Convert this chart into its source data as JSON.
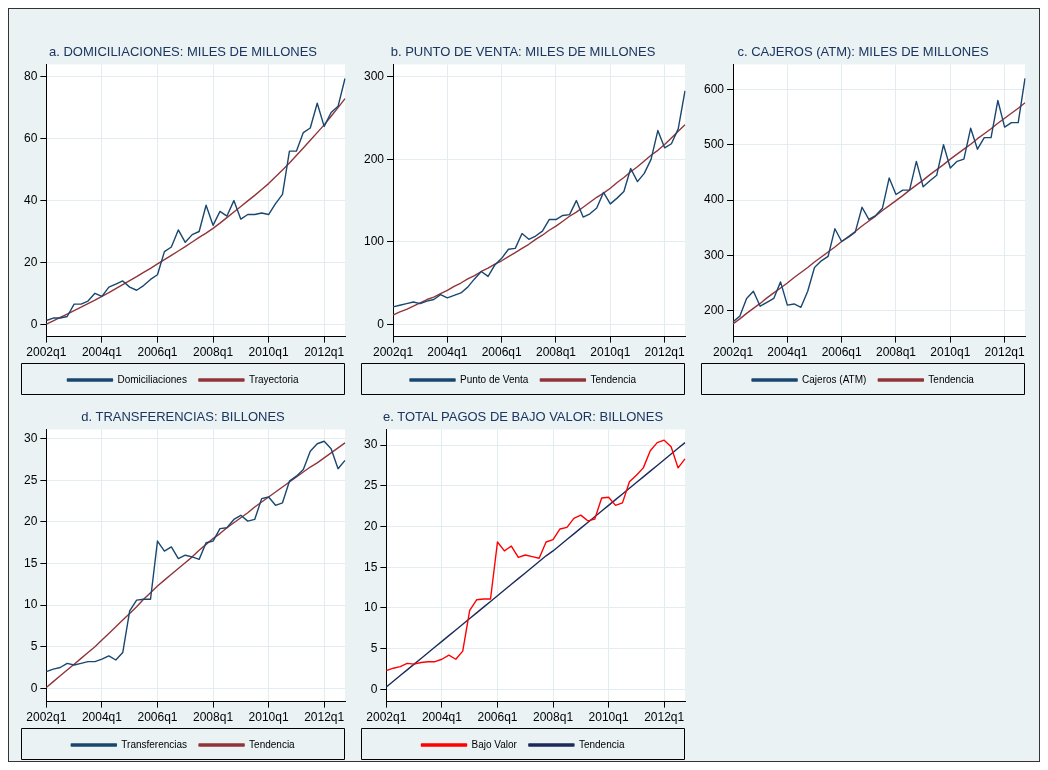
{
  "chart_data": [
    {
      "type": "line",
      "title": "a. DOMICILIACIONES: MILES DE MILLONES",
      "categories": [
        "2002q1",
        null,
        null,
        null,
        null,
        null,
        null,
        null,
        "2004q1",
        null,
        null,
        null,
        null,
        null,
        null,
        null,
        "2006q1",
        null,
        null,
        null,
        null,
        null,
        null,
        null,
        "2008q1",
        null,
        null,
        null,
        null,
        null,
        null,
        null,
        "2010q1",
        null,
        null,
        null,
        null,
        null,
        null,
        null,
        "2012q1",
        null,
        null,
        null
      ],
      "ylim": [
        -4,
        84
      ],
      "yticks": [
        0,
        20,
        40,
        60,
        80
      ],
      "grid": true,
      "legend": "bottom",
      "series": [
        {
          "name": "Domiciliaciones",
          "color": "#1a476f",
          "values": [
            1.2,
            2,
            2,
            2.5,
            6.5,
            6.5,
            7.5,
            10,
            9,
            12,
            13,
            14,
            12,
            11,
            12.5,
            14.5,
            16,
            23.5,
            25,
            30.5,
            26.5,
            29,
            30,
            38.5,
            32,
            36.5,
            35,
            40,
            34,
            35.5,
            35.5,
            36,
            35.5,
            39,
            42,
            56,
            56,
            62,
            63.5,
            71.5,
            64,
            68.5,
            70.5,
            79.5
          ]
        },
        {
          "name": "Trayectoria",
          "color": "#90353b",
          "values": [
            0,
            1.1,
            2.2,
            3.3,
            4.4,
            5.5,
            6.7,
            7.8,
            9,
            10.2,
            11.5,
            12.8,
            14.1,
            15.4,
            16.8,
            18.1,
            19.5,
            20.9,
            22.3,
            23.7,
            25.1,
            26.6,
            28.1,
            29.5,
            31,
            32.7,
            34.5,
            36.3,
            38.1,
            39.9,
            41.7,
            43.6,
            45.5,
            47.7,
            49.9,
            52.2,
            54.6,
            57,
            59.5,
            62,
            64.5,
            67.3,
            70.1,
            73
          ]
        }
      ]
    },
    {
      "type": "line",
      "title": "b. PUNTO DE VENTA: MILES DE MILLONES",
      "categories": [
        "2002q1",
        null,
        null,
        null,
        null,
        null,
        null,
        null,
        "2004q1",
        null,
        null,
        null,
        null,
        null,
        null,
        null,
        "2006q1",
        null,
        null,
        null,
        null,
        null,
        null,
        null,
        "2008q1",
        null,
        null,
        null,
        null,
        null,
        null,
        null,
        "2010q1",
        null,
        null,
        null,
        null,
        null,
        null,
        null,
        "2012q1",
        null,
        null,
        null
      ],
      "ylim": [
        -15,
        315
      ],
      "yticks": [
        0,
        100,
        200,
        300
      ],
      "grid": true,
      "legend": "bottom",
      "series": [
        {
          "name": "Punto de Venta",
          "color": "#1a476f",
          "values": [
            21,
            23,
            25,
            27,
            25,
            28,
            30,
            36,
            32,
            35,
            38,
            45,
            55,
            64,
            58,
            72,
            80,
            91,
            92,
            110,
            103,
            107,
            113,
            127,
            127,
            132,
            133,
            150,
            130,
            134,
            141,
            160,
            146,
            153,
            161,
            189,
            173,
            183,
            200,
            235,
            214,
            219,
            237,
            283
          ]
        },
        {
          "name": "Tendencia",
          "color": "#90353b",
          "values": [
            11,
            15,
            18,
            22,
            26,
            30,
            33,
            37,
            41,
            46,
            50,
            55,
            59,
            64,
            68,
            73,
            77,
            82,
            87,
            92,
            97,
            103,
            108,
            114,
            119,
            125,
            131,
            136,
            142,
            148,
            154,
            159,
            165,
            172,
            178,
            185,
            191,
            198,
            205,
            211,
            218,
            226,
            234,
            242
          ]
        }
      ]
    },
    {
      "type": "line",
      "title": "c. CAJEROS (ATM): MILES DE MILLONES",
      "categories": [
        "2002q1",
        null,
        null,
        null,
        null,
        null,
        null,
        null,
        "2004q1",
        null,
        null,
        null,
        null,
        null,
        null,
        null,
        "2006q1",
        null,
        null,
        null,
        null,
        null,
        null,
        null,
        "2008q1",
        null,
        null,
        null,
        null,
        null,
        null,
        null,
        "2010q1",
        null,
        null,
        null,
        null,
        null,
        null,
        null,
        "2012q1",
        null,
        null,
        null
      ],
      "ylim": [
        153,
        645
      ],
      "yticks": [
        200,
        300,
        400,
        500,
        600
      ],
      "grid": true,
      "legend": "bottom",
      "series": [
        {
          "name": "Cajeros (ATM)",
          "color": "#1a476f",
          "values": [
            180,
            190,
            222,
            235,
            208,
            215,
            222,
            252,
            210,
            212,
            206,
            235,
            278,
            290,
            298,
            348,
            325,
            333,
            342,
            387,
            365,
            372,
            385,
            440,
            410,
            418,
            418,
            470,
            424,
            435,
            445,
            500,
            458,
            470,
            474,
            530,
            492,
            513,
            513,
            580,
            532,
            540,
            540,
            620
          ]
        },
        {
          "name": "Tendencia",
          "color": "#90353b",
          "values": [
            176,
            185,
            195,
            204,
            213,
            223,
            232,
            241,
            250,
            260,
            269,
            278,
            288,
            297,
            306,
            315,
            325,
            334,
            343,
            353,
            362,
            371,
            381,
            390,
            399,
            408,
            418,
            427,
            436,
            446,
            455,
            464,
            474,
            483,
            492,
            501,
            511,
            520,
            529,
            539,
            548,
            557,
            566,
            576
          ]
        }
      ]
    },
    {
      "type": "line",
      "title": "d. TRANSFERENCIAS: BILLONES",
      "categories": [
        "2002q1",
        null,
        null,
        null,
        null,
        null,
        null,
        null,
        "2004q1",
        null,
        null,
        null,
        null,
        null,
        null,
        null,
        "2006q1",
        null,
        null,
        null,
        null,
        null,
        null,
        null,
        "2008q1",
        null,
        null,
        null,
        null,
        null,
        null,
        null,
        "2010q1",
        null,
        null,
        null,
        null,
        null,
        null,
        null,
        "2012q1",
        null,
        null,
        null
      ],
      "ylim": [
        -1.6,
        31.1
      ],
      "yticks": [
        0,
        5,
        10,
        15,
        20,
        25,
        30
      ],
      "grid": true,
      "legend": "bottom",
      "series": [
        {
          "name": "Transferencias",
          "color": "#1a476f",
          "values": [
            2,
            2.3,
            2.5,
            3,
            2.8,
            3,
            3.2,
            3.2,
            3.5,
            3.9,
            3.4,
            4.3,
            9.3,
            10.6,
            10.7,
            10.7,
            17.7,
            16.5,
            17,
            15.6,
            16,
            15.8,
            15.5,
            17.5,
            17.7,
            19.2,
            19.3,
            20.3,
            20.8,
            20.1,
            20.3,
            22.8,
            23,
            22,
            22.3,
            24.9,
            25.5,
            26.3,
            28.5,
            29.4,
            29.7,
            28.8,
            26.4,
            27.4
          ]
        },
        {
          "name": "Tendencia",
          "color": "#90353b",
          "values": [
            0.1,
            0.8,
            1.5,
            2.2,
            2.9,
            3.6,
            4.3,
            5,
            5.8,
            6.6,
            7.4,
            8.2,
            9,
            9.8,
            10.7,
            11.5,
            12.3,
            13,
            13.7,
            14.4,
            15.1,
            15.8,
            16.6,
            17.3,
            18,
            18.6,
            19.3,
            19.9,
            20.5,
            21.1,
            21.8,
            22.4,
            23,
            23.6,
            24.2,
            24.8,
            25.4,
            26,
            26.6,
            27.1,
            27.7,
            28.3,
            28.9,
            29.5
          ]
        }
      ]
    },
    {
      "type": "line",
      "title": "e. TOTAL PAGOS DE BAJO VALOR: BILLONES",
      "categories": [
        "2002q1",
        null,
        null,
        null,
        null,
        null,
        null,
        null,
        "2004q1",
        null,
        null,
        null,
        null,
        null,
        null,
        null,
        "2006q1",
        null,
        null,
        null,
        null,
        null,
        null,
        null,
        "2008q1",
        null,
        null,
        null,
        null,
        null,
        null,
        null,
        "2010q1",
        null,
        null,
        null,
        null,
        null,
        null,
        null,
        "2012q1",
        null,
        null,
        null
      ],
      "ylim": [
        -1.5,
        31.9
      ],
      "yticks": [
        0,
        5,
        10,
        15,
        20,
        25,
        30
      ],
      "grid": true,
      "legend": "bottom",
      "series": [
        {
          "name": "Bajo Valor",
          "color": "#ff0000",
          "values": [
            2.3,
            2.6,
            2.8,
            3.2,
            3.1,
            3.3,
            3.4,
            3.4,
            3.7,
            4.2,
            3.7,
            4.7,
            9.7,
            11,
            11.1,
            11.1,
            18.1,
            17,
            17.6,
            16.2,
            16.5,
            16.3,
            16.1,
            18.1,
            18.4,
            19.7,
            19.9,
            21,
            21.4,
            20.7,
            20.9,
            23.5,
            23.6,
            22.6,
            22.9,
            25.5,
            26.3,
            27.2,
            29.3,
            30.3,
            30.6,
            29.8,
            27.2,
            28.3
          ]
        },
        {
          "name": "Tendencia",
          "color": "#1c2b5a",
          "values": [
            0.3,
            1,
            1.7,
            2.4,
            3.1,
            3.8,
            4.5,
            5.2,
            5.9,
            6.6,
            7.3,
            8,
            8.7,
            9.4,
            10.1,
            10.8,
            11.5,
            12.2,
            12.9,
            13.6,
            14.3,
            15,
            15.7,
            16.4,
            17,
            17.7,
            18.4,
            19.1,
            19.8,
            20.5,
            21.2,
            21.9,
            22.6,
            23.3,
            24,
            24.7,
            25.4,
            26.1,
            26.8,
            27.5,
            28.2,
            28.9,
            29.6,
            30.3
          ]
        }
      ]
    }
  ]
}
